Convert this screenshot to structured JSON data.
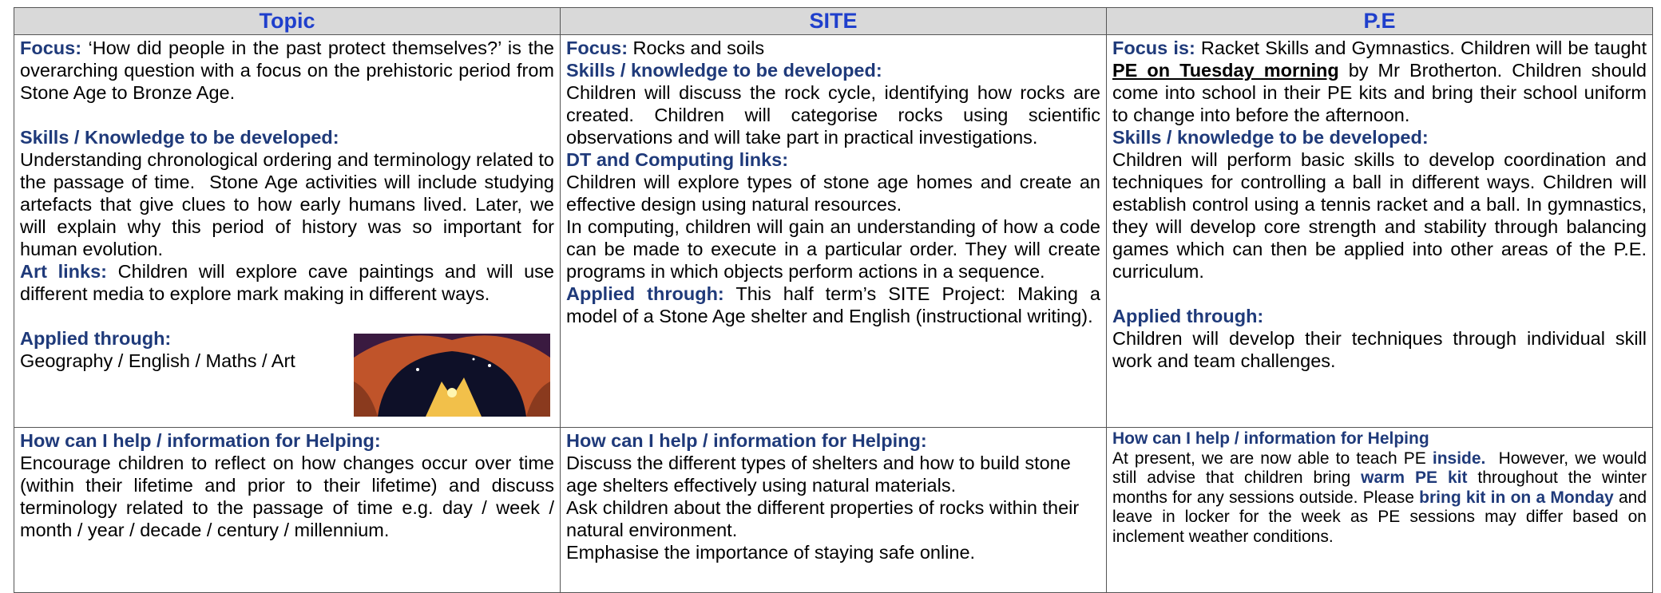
{
  "columns": [
    {
      "header": "Topic",
      "body": [
        [
          {
            "label": "Focus:"
          },
          {
            "text": " ‘How did people in the past protect themselves?’ is the overarching question with a focus on the prehistoric period from Stone Age to Bronze Age."
          }
        ],
        [
          {
            "label": "Skills / Knowledge to be developed:"
          }
        ],
        [
          {
            "text": "Understanding chronological ordering and terminology related to the passage of time.  Stone Age activities will include studying artefacts that give clues to how early humans lived. Later, we will explain why this period of history was so important for human evolution."
          }
        ],
        [
          {
            "label": "Art links:"
          },
          {
            "text": " Children will explore cave paintings and will use different media to explore mark making in different ways."
          }
        ],
        [
          {
            "label": "Applied through:"
          }
        ],
        [
          {
            "text": "Geography / English / Maths / Art"
          }
        ]
      ],
      "help": [
        [
          {
            "label": "How can I help / information for Helping:"
          }
        ],
        [
          {
            "text": "Encourage children to reflect on how changes occur over time (within their lifetime and prior to their lifetime) and discuss terminology related to the passage of time e.g. day / week / month / year / decade / century / millennium."
          }
        ]
      ]
    },
    {
      "header": "SITE",
      "body": [
        [
          {
            "label": "Focus:"
          },
          {
            "text": " Rocks and soils"
          }
        ],
        [
          {
            "label": "Skills / knowledge to be developed:"
          }
        ],
        [
          {
            "text": "Children will discuss the rock cycle, identifying how rocks are created. Children will categorise rocks using scientific observations and will take part in practical investigations."
          }
        ],
        [
          {
            "label": "DT and Computing links:"
          }
        ],
        [
          {
            "text": "Children will explore types of stone age homes and create an effective design using natural resources."
          }
        ],
        [
          {
            "text": "In computing, children will gain an understanding of how a code can be made to execute in a particular order. They will create programs in which objects perform actions in a sequence."
          }
        ],
        [
          {
            "label": "Applied through:"
          },
          {
            "text": " This half term’s SITE Project: Making a model of a Stone Age shelter and English (instructional writing)."
          }
        ]
      ],
      "help": [
        [
          {
            "label": "How can I help / information for Helping:"
          }
        ],
        [
          {
            "text": "Discuss the different types of shelters and how to build stone age shelters effectively using natural materials."
          }
        ],
        [
          {
            "text": "Ask children about the different properties of rocks within their natural environment."
          }
        ],
        [
          {
            "text": "Emphasise the importance of staying safe online."
          }
        ]
      ]
    },
    {
      "header": "P.E",
      "body": [
        [
          {
            "label": "Focus is:"
          },
          {
            "text": " Racket Skills and Gymnastics. Children will be taught "
          },
          {
            "underline": "PE on Tuesday morning"
          },
          {
            "text": " by Mr Brotherton. Children should come into school in their PE kits and bring their school uniform to change into before the afternoon."
          }
        ],
        [
          {
            "label": "Skills / knowledge to be developed:"
          }
        ],
        [
          {
            "text": "Children will perform basic skills to develop coordination and techniques for controlling a ball in different ways. Children will establish control using a tennis racket and a ball. In gymnastics, they will develop core strength and stability through balancing games which can then be applied into other areas of the P.E. curriculum."
          }
        ],
        [
          {
            "label": "Applied through:"
          }
        ],
        [
          {
            "text": "Children will develop their techniques through individual skill work and team challenges."
          }
        ]
      ],
      "help": [
        [
          {
            "label": "How can I help / information for Helping"
          }
        ],
        [
          {
            "text": "At present, we are now able to teach PE "
          },
          {
            "emphasis": "inside."
          },
          {
            "text": "  However, we would still advise that children bring "
          },
          {
            "emphasis": "warm PE kit"
          },
          {
            "text": " throughout the winter months for any sessions outside. Please "
          },
          {
            "emphasis": "bring kit in on a Monday"
          },
          {
            "text": " and leave in locker for the week as PE sessions may differ based on inclement weather conditions."
          }
        ]
      ]
    }
  ]
}
